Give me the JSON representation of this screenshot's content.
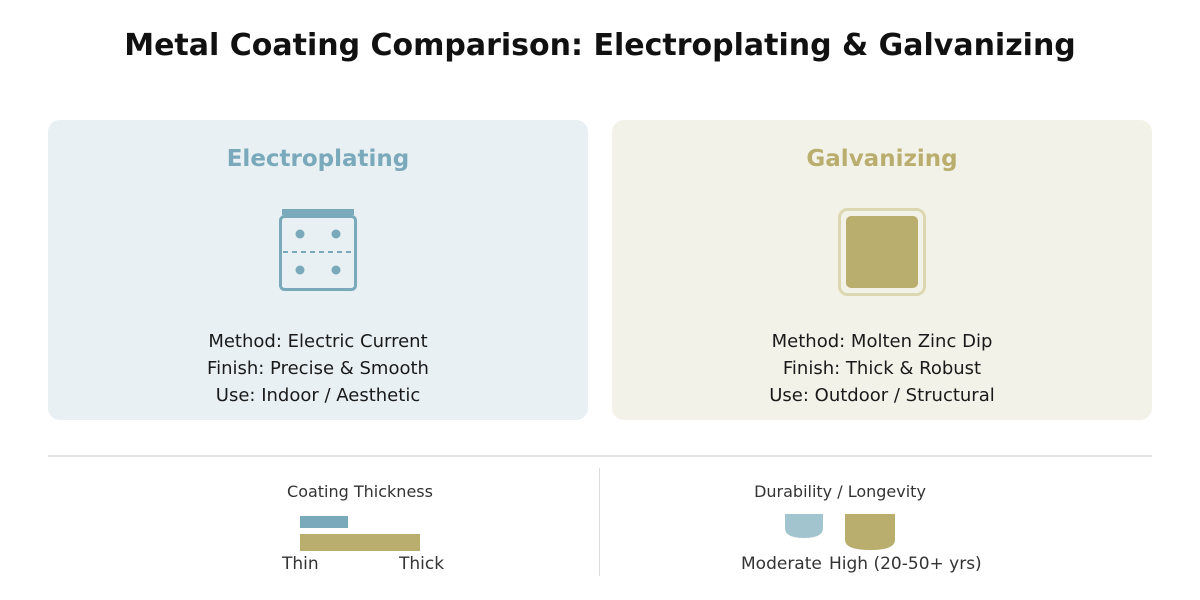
{
  "title": "Metal Coating Comparison: Electroplating & Galvanizing",
  "colors": {
    "electroplating_accent": "#79a9ba",
    "electroplating_bg": "#e8f0f3",
    "galvanizing_accent": "#b9ae6e",
    "galvanizing_bg": "#f3f2e9"
  },
  "electroplating": {
    "title": "Electroplating",
    "icon": "plating-tank-icon",
    "method": "Method: Electric Current",
    "finish": "Finish: Precise & Smooth",
    "use": "Use: Indoor / Aesthetic"
  },
  "galvanizing": {
    "title": "Galvanizing",
    "icon": "zinc-block-icon",
    "method": "Method: Molten Zinc Dip",
    "finish": "Finish: Thick & Robust",
    "use": "Use: Outdoor / Structural"
  },
  "chart_data": [
    {
      "type": "bar",
      "title": "Coating Thickness",
      "categories": [
        "Electroplating",
        "Galvanizing"
      ],
      "values": [
        0.4,
        1.0
      ],
      "xlim": [
        0,
        1
      ],
      "tick_labels": [
        "Thin",
        "Thick"
      ]
    },
    {
      "type": "bar",
      "title": "Durability / Longevity",
      "categories": [
        "Electroplating",
        "Galvanizing"
      ],
      "values": [
        0.67,
        1.0
      ],
      "labels": [
        "Moderate",
        "High (20-50+ yrs)"
      ]
    }
  ]
}
